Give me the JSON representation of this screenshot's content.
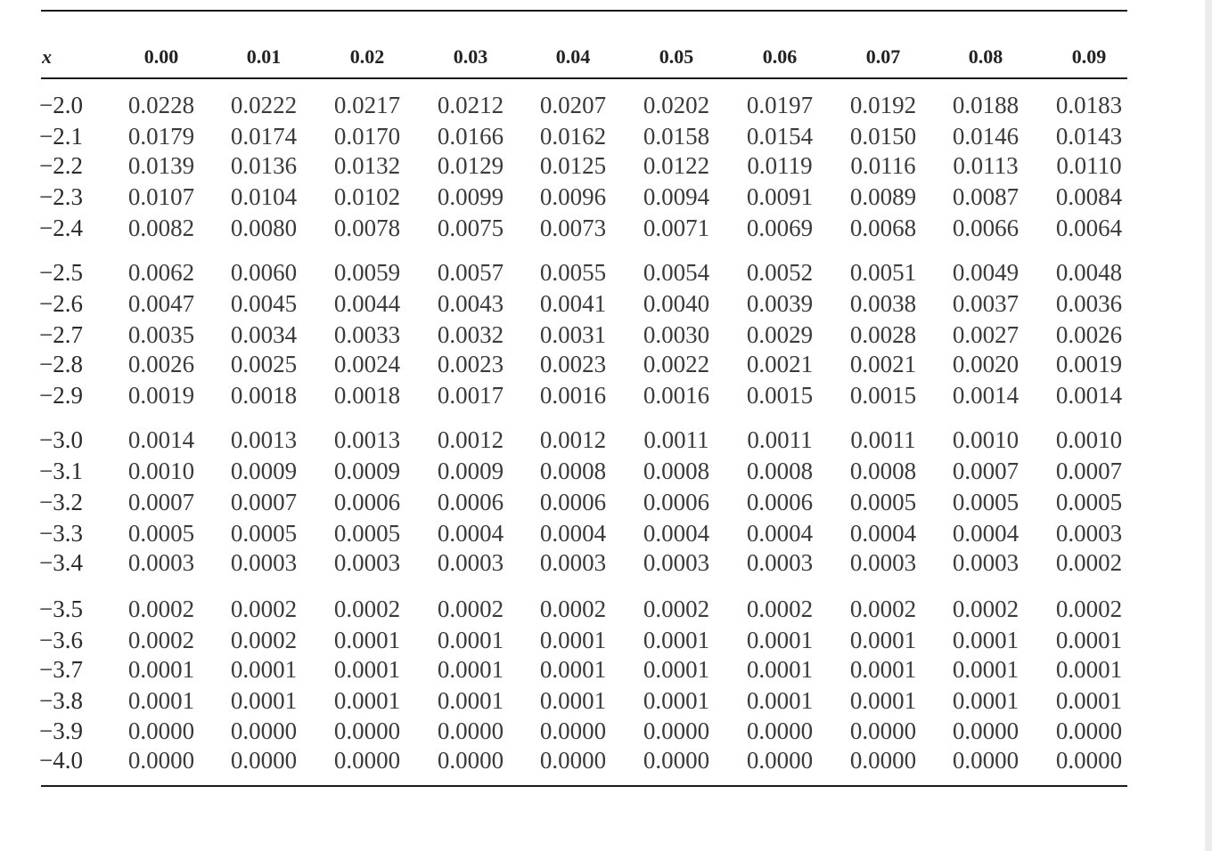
{
  "table": {
    "x_header": "x",
    "columns": [
      "0.00",
      "0.01",
      "0.02",
      "0.03",
      "0.04",
      "0.05",
      "0.06",
      "0.07",
      "0.08",
      "0.09"
    ],
    "groups": [
      [
        {
          "x": "−2.0",
          "values": [
            "0.0228",
            "0.0222",
            "0.0217",
            "0.0212",
            "0.0207",
            "0.0202",
            "0.0197",
            "0.0192",
            "0.0188",
            "0.0183"
          ]
        },
        {
          "x": "−2.1",
          "values": [
            "0.0179",
            "0.0174",
            "0.0170",
            "0.0166",
            "0.0162",
            "0.0158",
            "0.0154",
            "0.0150",
            "0.0146",
            "0.0143"
          ]
        },
        {
          "x": "−2.2",
          "values": [
            "0.0139",
            "0.0136",
            "0.0132",
            "0.0129",
            "0.0125",
            "0.0122",
            "0.0119",
            "0.0116",
            "0.0113",
            "0.0110"
          ]
        },
        {
          "x": "−2.3",
          "values": [
            "0.0107",
            "0.0104",
            "0.0102",
            "0.0099",
            "0.0096",
            "0.0094",
            "0.0091",
            "0.0089",
            "0.0087",
            "0.0084"
          ]
        },
        {
          "x": "−2.4",
          "values": [
            "0.0082",
            "0.0080",
            "0.0078",
            "0.0075",
            "0.0073",
            "0.0071",
            "0.0069",
            "0.0068",
            "0.0066",
            "0.0064"
          ]
        }
      ],
      [
        {
          "x": "−2.5",
          "values": [
            "0.0062",
            "0.0060",
            "0.0059",
            "0.0057",
            "0.0055",
            "0.0054",
            "0.0052",
            "0.0051",
            "0.0049",
            "0.0048"
          ]
        },
        {
          "x": "−2.6",
          "values": [
            "0.0047",
            "0.0045",
            "0.0044",
            "0.0043",
            "0.0041",
            "0.0040",
            "0.0039",
            "0.0038",
            "0.0037",
            "0.0036"
          ]
        },
        {
          "x": "−2.7",
          "values": [
            "0.0035",
            "0.0034",
            "0.0033",
            "0.0032",
            "0.0031",
            "0.0030",
            "0.0029",
            "0.0028",
            "0.0027",
            "0.0026"
          ]
        },
        {
          "x": "−2.8",
          "values": [
            "0.0026",
            "0.0025",
            "0.0024",
            "0.0023",
            "0.0023",
            "0.0022",
            "0.0021",
            "0.0021",
            "0.0020",
            "0.0019"
          ]
        },
        {
          "x": "−2.9",
          "values": [
            "0.0019",
            "0.0018",
            "0.0018",
            "0.0017",
            "0.0016",
            "0.0016",
            "0.0015",
            "0.0015",
            "0.0014",
            "0.0014"
          ]
        }
      ],
      [
        {
          "x": "−3.0",
          "values": [
            "0.0014",
            "0.0013",
            "0.0013",
            "0.0012",
            "0.0012",
            "0.0011",
            "0.0011",
            "0.0011",
            "0.0010",
            "0.0010"
          ]
        },
        {
          "x": "−3.1",
          "values": [
            "0.0010",
            "0.0009",
            "0.0009",
            "0.0009",
            "0.0008",
            "0.0008",
            "0.0008",
            "0.0008",
            "0.0007",
            "0.0007"
          ]
        },
        {
          "x": "−3.2",
          "values": [
            "0.0007",
            "0.0007",
            "0.0006",
            "0.0006",
            "0.0006",
            "0.0006",
            "0.0006",
            "0.0005",
            "0.0005",
            "0.0005"
          ]
        },
        {
          "x": "−3.3",
          "values": [
            "0.0005",
            "0.0005",
            "0.0005",
            "0.0004",
            "0.0004",
            "0.0004",
            "0.0004",
            "0.0004",
            "0.0004",
            "0.0003"
          ]
        },
        {
          "x": "−3.4",
          "values": [
            "0.0003",
            "0.0003",
            "0.0003",
            "0.0003",
            "0.0003",
            "0.0003",
            "0.0003",
            "0.0003",
            "0.0003",
            "0.0002"
          ]
        }
      ],
      [
        {
          "x": "−3.5",
          "values": [
            "0.0002",
            "0.0002",
            "0.0002",
            "0.0002",
            "0.0002",
            "0.0002",
            "0.0002",
            "0.0002",
            "0.0002",
            "0.0002"
          ]
        },
        {
          "x": "−3.6",
          "values": [
            "0.0002",
            "0.0002",
            "0.0001",
            "0.0001",
            "0.0001",
            "0.0001",
            "0.0001",
            "0.0001",
            "0.0001",
            "0.0001"
          ]
        },
        {
          "x": "−3.7",
          "values": [
            "0.0001",
            "0.0001",
            "0.0001",
            "0.0001",
            "0.0001",
            "0.0001",
            "0.0001",
            "0.0001",
            "0.0001",
            "0.0001"
          ]
        },
        {
          "x": "−3.8",
          "values": [
            "0.0001",
            "0.0001",
            "0.0001",
            "0.0001",
            "0.0001",
            "0.0001",
            "0.0001",
            "0.0001",
            "0.0001",
            "0.0001"
          ]
        },
        {
          "x": "−3.9",
          "values": [
            "0.0000",
            "0.0000",
            "0.0000",
            "0.0000",
            "0.0000",
            "0.0000",
            "0.0000",
            "0.0000",
            "0.0000",
            "0.0000"
          ]
        },
        {
          "x": "−4.0",
          "values": [
            "0.0000",
            "0.0000",
            "0.0000",
            "0.0000",
            "0.0000",
            "0.0000",
            "0.0000",
            "0.0000",
            "0.0000",
            "0.0000"
          ]
        }
      ]
    ]
  }
}
